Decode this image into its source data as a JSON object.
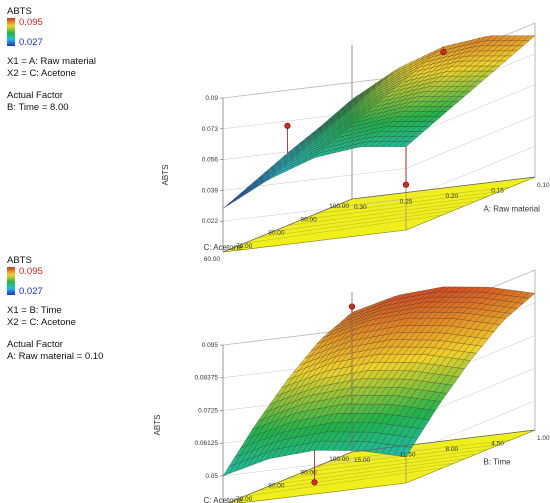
{
  "chart_data": [
    {
      "type": "surface",
      "zlabel": "ABTS",
      "legend": {
        "title": "ABTS",
        "high": "0.095",
        "low": "0.027"
      },
      "factors_text": [
        "X1 = A: Raw material",
        "X2 = C: Acetone"
      ],
      "actual_factor_heading": "Actual Factor",
      "actual_factor": "B: Time = 8.00",
      "x_axis": {
        "label": "A: Raw material",
        "ticks": [
          "0.10",
          "0.15",
          "0.20",
          "0.25",
          "0.30"
        ],
        "range": [
          0.1,
          0.3
        ]
      },
      "y_axis": {
        "label": "C: Acetone",
        "ticks": [
          "60.00",
          "70.00",
          "80.00",
          "90.00",
          "100.00"
        ],
        "range": [
          60,
          100
        ]
      },
      "z_axis": {
        "ticks": [
          "0.022",
          "0.039",
          "0.056",
          "0.073",
          "0.09"
        ],
        "range": [
          0.005,
          0.09
        ]
      },
      "z_grid": [
        [
          0.06,
          0.074,
          0.083,
          0.086,
          0.083
        ],
        [
          0.052,
          0.066,
          0.075,
          0.078,
          0.075
        ],
        [
          0.045,
          0.058,
          0.067,
          0.07,
          0.067
        ],
        [
          0.037,
          0.05,
          0.059,
          0.062,
          0.059
        ],
        [
          0.029,
          0.042,
          0.051,
          0.054,
          0.051
        ]
      ],
      "points": [
        [
          0.2,
          60,
          0.08
        ],
        [
          0.1,
          80,
          0.06
        ],
        [
          0.3,
          100,
          0.03
        ]
      ]
    },
    {
      "type": "surface",
      "zlabel": "ABTS",
      "legend": {
        "title": "ABTS",
        "high": "0.095",
        "low": "0.027"
      },
      "factors_text": [
        "X1 = B: Time",
        "X2 = C: Acetone"
      ],
      "actual_factor_heading": "Actual Factor",
      "actual_factor": "A: Raw material = 0.10",
      "x_axis": {
        "label": "B: Time",
        "ticks": [
          "1.00",
          "4.50",
          "8.00",
          "11.50",
          "15.00"
        ],
        "range": [
          1,
          15
        ]
      },
      "y_axis": {
        "label": "C: Acetone",
        "ticks": [
          "60.00",
          "70.00",
          "80.00",
          "90.00",
          "100.00"
        ],
        "range": [
          60,
          100
        ]
      },
      "z_axis": {
        "ticks": [
          "0.05",
          "0.06125",
          "0.0725",
          "0.08375",
          "0.095"
        ],
        "range": [
          0.04,
          0.095
        ]
      },
      "z_grid": [
        [
          0.088,
          0.092,
          0.093,
          0.091,
          0.087
        ],
        [
          0.083,
          0.087,
          0.088,
          0.086,
          0.082
        ],
        [
          0.074,
          0.078,
          0.079,
          0.077,
          0.073
        ],
        [
          0.063,
          0.067,
          0.068,
          0.066,
          0.062
        ],
        [
          0.05,
          0.054,
          0.055,
          0.053,
          0.049
        ]
      ],
      "points": [
        [
          1.0,
          60,
          0.09
        ],
        [
          8.0,
          100,
          0.044
        ]
      ]
    }
  ]
}
